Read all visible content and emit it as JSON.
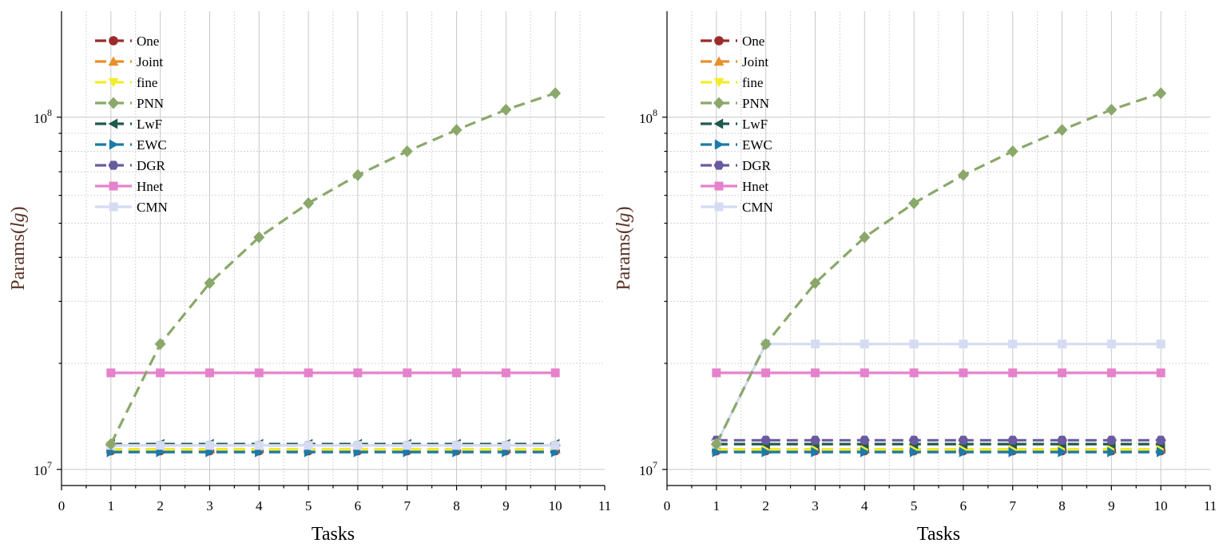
{
  "chart_data": [
    {
      "id": "left",
      "type": "line",
      "xlabel": "Tasks",
      "ylabel_main": "Params(",
      "ylabel_italic": "lg",
      "ylabel_close": ")",
      "xlim": [
        0,
        11
      ],
      "ylim": [
        9000000,
        200000000
      ],
      "yscale": "log",
      "xticks": [
        0,
        1,
        2,
        3,
        4,
        5,
        6,
        7,
        8,
        9,
        10,
        11
      ],
      "yticks": [
        {
          "base": "10",
          "exp": "7",
          "value": 10000000
        },
        {
          "base": "10",
          "exp": "8",
          "value": 100000000
        }
      ],
      "legend_position": "top-left",
      "grid": true,
      "x": [
        1,
        2,
        3,
        4,
        5,
        6,
        7,
        8,
        9,
        10
      ],
      "series": [
        {
          "name": "One",
          "color": "#9b2b2b",
          "marker": "circle",
          "dash": "dashed",
          "values": [
            11300000,
            11300000,
            11300000,
            11300000,
            11300000,
            11300000,
            11300000,
            11300000,
            11300000,
            11300000
          ]
        },
        {
          "name": "Joint",
          "color": "#e8902a",
          "marker": "triangle-up",
          "dash": "dashed",
          "values": [
            11400000,
            11400000,
            11400000,
            11400000,
            11400000,
            11400000,
            11400000,
            11400000,
            11400000,
            11400000
          ]
        },
        {
          "name": "fine",
          "color": "#f2ee2a",
          "marker": "triangle-down",
          "dash": "dashed",
          "values": [
            11400000,
            11400000,
            11400000,
            11400000,
            11400000,
            11400000,
            11400000,
            11400000,
            11400000,
            11400000
          ]
        },
        {
          "name": "PNN",
          "color": "#8aa86a",
          "marker": "diamond",
          "dash": "dashed",
          "values": [
            11800000,
            22700000,
            33800000,
            45600000,
            57000000,
            68500000,
            80000000,
            92000000,
            105000000,
            117000000
          ]
        },
        {
          "name": "LwF",
          "color": "#1f5a4c",
          "marker": "triangle-left",
          "dash": "dashed",
          "values": [
            11800000,
            11800000,
            11800000,
            11800000,
            11800000,
            11800000,
            11800000,
            11800000,
            11800000,
            11800000
          ]
        },
        {
          "name": "EWC",
          "color": "#1c7aa8",
          "marker": "triangle-right",
          "dash": "dashed",
          "values": [
            11200000,
            11200000,
            11200000,
            11200000,
            11200000,
            11200000,
            11200000,
            11200000,
            11200000,
            11200000
          ]
        },
        {
          "name": "DGR",
          "color": "#6a5aa0",
          "marker": "hexagon",
          "dash": "dashed",
          "values": [
            11700000,
            11700000,
            11700000,
            11700000,
            11700000,
            11700000,
            11700000,
            11700000,
            11700000,
            11700000
          ]
        },
        {
          "name": "Hnet",
          "color": "#e582cc",
          "marker": "square",
          "dash": "solid",
          "values": [
            18800000,
            18800000,
            18800000,
            18800000,
            18800000,
            18800000,
            18800000,
            18800000,
            18800000,
            18800000
          ]
        },
        {
          "name": "CMN",
          "color": "#d5dcf2",
          "marker": "square",
          "dash": "solid",
          "values": [
            11700000,
            11700000,
            11700000,
            11700000,
            11700000,
            11700000,
            11700000,
            11700000,
            11700000,
            11700000
          ]
        }
      ]
    },
    {
      "id": "right",
      "type": "line",
      "xlabel": "Tasks",
      "ylabel_main": "Params(",
      "ylabel_italic": "lg",
      "ylabel_close": ")",
      "xlim": [
        0,
        11
      ],
      "ylim": [
        9000000,
        200000000
      ],
      "yscale": "log",
      "xticks": [
        0,
        1,
        2,
        3,
        4,
        5,
        6,
        7,
        8,
        9,
        10,
        11
      ],
      "yticks": [
        {
          "base": "10",
          "exp": "7",
          "value": 10000000
        },
        {
          "base": "10",
          "exp": "8",
          "value": 100000000
        }
      ],
      "legend_position": "top-left",
      "grid": true,
      "x": [
        1,
        2,
        3,
        4,
        5,
        6,
        7,
        8,
        9,
        10
      ],
      "series": [
        {
          "name": "One",
          "color": "#9b2b2b",
          "marker": "circle",
          "dash": "dashed",
          "values": [
            11300000,
            11300000,
            11300000,
            11300000,
            11300000,
            11300000,
            11300000,
            11300000,
            11300000,
            11300000
          ]
        },
        {
          "name": "Joint",
          "color": "#e8902a",
          "marker": "triangle-up",
          "dash": "dashed",
          "values": [
            11400000,
            11400000,
            11400000,
            11400000,
            11400000,
            11400000,
            11400000,
            11400000,
            11400000,
            11400000
          ]
        },
        {
          "name": "fine",
          "color": "#f2ee2a",
          "marker": "triangle-down",
          "dash": "dashed",
          "values": [
            11400000,
            11400000,
            11400000,
            11400000,
            11400000,
            11400000,
            11400000,
            11400000,
            11400000,
            11400000
          ]
        },
        {
          "name": "PNN",
          "color": "#8aa86a",
          "marker": "diamond",
          "dash": "dashed",
          "values": [
            11800000,
            22700000,
            33800000,
            45600000,
            57000000,
            68500000,
            80000000,
            92000000,
            105000000,
            117000000
          ]
        },
        {
          "name": "LwF",
          "color": "#1f5a4c",
          "marker": "triangle-left",
          "dash": "dashed",
          "values": [
            11800000,
            11800000,
            11800000,
            11800000,
            11800000,
            11800000,
            11800000,
            11800000,
            11800000,
            11800000
          ]
        },
        {
          "name": "EWC",
          "color": "#1c7aa8",
          "marker": "triangle-right",
          "dash": "dashed",
          "values": [
            11200000,
            11200000,
            11200000,
            11200000,
            11200000,
            11200000,
            11200000,
            11200000,
            11200000,
            11200000
          ]
        },
        {
          "name": "DGR",
          "color": "#6a5aa0",
          "marker": "hexagon",
          "dash": "dashed",
          "values": [
            12100000,
            12100000,
            12100000,
            12100000,
            12100000,
            12100000,
            12100000,
            12100000,
            12100000,
            12100000
          ]
        },
        {
          "name": "Hnet",
          "color": "#e582cc",
          "marker": "square",
          "dash": "solid",
          "values": [
            18800000,
            18800000,
            18800000,
            18800000,
            18800000,
            18800000,
            18800000,
            18800000,
            18800000,
            18800000
          ]
        },
        {
          "name": "CMN",
          "color": "#d5dcf2",
          "marker": "square",
          "dash": "solid",
          "values": [
            11800000,
            22700000,
            22700000,
            22700000,
            22700000,
            22700000,
            22700000,
            22700000,
            22700000,
            22700000
          ]
        }
      ]
    }
  ]
}
